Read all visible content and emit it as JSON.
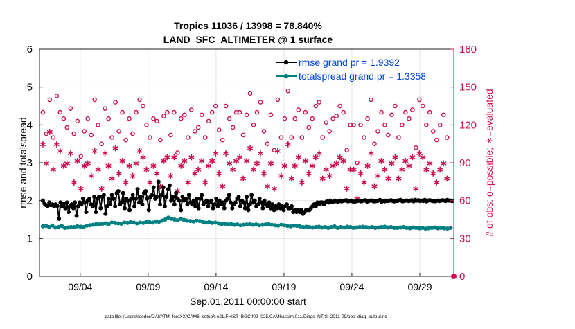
{
  "chart_data": {
    "type": "line",
    "title_line1": "Tropics 11036 / 13998 = 78.840%",
    "title_line2": "LAND_SFC_ALTIMETER @ 1 surface",
    "xlabel": "Sep.01,2011 00:00:00 start",
    "ylabel_left": "rmse and totalspread",
    "ylabel_right": "# of obs: o=possible; ∗=evaluated",
    "footer": "data file: /Users/raeder/DAI/ATM_forcXX/CAM6_setup/f.e21.FHIST_BGC.f09_025.CAM6assim.011/Diags_NTrS_2011-09/obs_diag_output.nc",
    "xlim": [
      0,
      30.5
    ],
    "ylim_left": [
      0,
      6
    ],
    "ylim_right": [
      0,
      180
    ],
    "left_ticks": [
      "0",
      "1",
      "2",
      "3",
      "4",
      "5",
      "6"
    ],
    "right_ticks": [
      "0",
      "30",
      "60",
      "90",
      "120",
      "150",
      "180"
    ],
    "x_ticks": [
      {
        "day": 3,
        "label": "09/04"
      },
      {
        "day": 8,
        "label": "09/09"
      },
      {
        "day": 13,
        "label": "09/14"
      },
      {
        "day": 18,
        "label": "09/19"
      },
      {
        "day": 23,
        "label": "09/24"
      },
      {
        "day": 28,
        "label": "09/29"
      }
    ],
    "legend": {
      "position": "top-right",
      "rmse": "rmse grand pr = 1.9392",
      "spread": "totalspread grand pr = 1.3358"
    },
    "colors": {
      "rmse": "#000000",
      "spread": "#008080",
      "obs": "#cc1155",
      "legend_text": "#0044dd",
      "grid": "#e4e4e4"
    },
    "series": [
      {
        "name": "rmse",
        "values": [
          2.0,
          1.92,
          1.88,
          1.86,
          1.95,
          1.88,
          1.9,
          1.85,
          1.9,
          1.86,
          1.52,
          1.95,
          1.85,
          1.92,
          1.8,
          1.95,
          1.7,
          1.85,
          1.9,
          1.8,
          1.95,
          1.6,
          1.85,
          1.95,
          1.9,
          2.05,
          1.95,
          1.7,
          2.0,
          2.05,
          1.9,
          1.85,
          2.1,
          1.7,
          2.05,
          2.1,
          1.8,
          2.1,
          2.15,
          1.65,
          1.85,
          2.05,
          1.9,
          2.15,
          2.05,
          1.85,
          2.2,
          2.25,
          1.9,
          1.95,
          2.2,
          1.8,
          2.05,
          2.0,
          1.75,
          2.05,
          2.15,
          1.85,
          2.05,
          2.3,
          1.95,
          2.1,
          1.9,
          2.2,
          2.25,
          2.05,
          1.75,
          2.1,
          2.15,
          2.35,
          2.05,
          2.1,
          2.5,
          1.9,
          2.15,
          2.35,
          1.85,
          2.1,
          2.3,
          2.4,
          2.0,
          2.1,
          1.9,
          2.2,
          2.05,
          2.0,
          1.75,
          2.1,
          2.0,
          2.05,
          1.9,
          2.15,
          1.95,
          1.9,
          2.0,
          1.85,
          2.05,
          1.8,
          2.05,
          2.15,
          1.9,
          1.95,
          2.0,
          1.85,
          1.95,
          2.0,
          1.8,
          1.9,
          2.05,
          1.85,
          2.0,
          1.9,
          1.95,
          1.8,
          2.0,
          2.05,
          2.15,
          1.95,
          1.8,
          1.9,
          1.95,
          2.05,
          2.1,
          1.85,
          2.0,
          1.95,
          1.8,
          2.1,
          1.75,
          1.9,
          2.15,
          1.95,
          2.0,
          1.85,
          1.9,
          2.05,
          1.95,
          1.8,
          2.0,
          1.9,
          1.85,
          1.95,
          1.8,
          1.9,
          1.75,
          1.85,
          1.8,
          1.9,
          1.8,
          1.85,
          1.75,
          1.85,
          1.9,
          1.8,
          1.8,
          1.85,
          1.7,
          1.75,
          1.7,
          1.75,
          1.7,
          1.75,
          1.65,
          1.7,
          1.75,
          1.75,
          1.75,
          1.8,
          1.85,
          1.9,
          1.85,
          1.95,
          1.9,
          1.95,
          1.95,
          1.9,
          1.95,
          1.98,
          1.95,
          2.0,
          1.96,
          1.97,
          2.0,
          1.98,
          1.97,
          2.0,
          1.98,
          1.99,
          2.0,
          2.01,
          1.98,
          1.99,
          2.0,
          1.98,
          1.97,
          1.98,
          1.99,
          2.0,
          1.98,
          1.99,
          2.0,
          2.01,
          1.97,
          1.99,
          2.0,
          2.0,
          1.98,
          1.98,
          1.99,
          2.0,
          2.02,
          1.97,
          1.99,
          1.98,
          2.0,
          1.99,
          2.0,
          2.01,
          1.99,
          1.98,
          2.0,
          1.99,
          2.01,
          2.02,
          1.98,
          1.99,
          2.0,
          2.0,
          1.99,
          2.0,
          2.01,
          1.98,
          2.02,
          2.0,
          2.01,
          1.99,
          2.0,
          1.99,
          2.02,
          1.98,
          2.0,
          2.01,
          2.0,
          1.99,
          1.98,
          1.99,
          2.0,
          1.99,
          2.0,
          2.01,
          2.0,
          1.99,
          2.02,
          2.0,
          2.0,
          1.99
        ],
        "note": "values sampled every 0.25 day"
      },
      {
        "name": "totalspread",
        "values": [
          1.32,
          1.33,
          1.3,
          1.34,
          1.29,
          1.3,
          1.33,
          1.28,
          1.29,
          1.3,
          1.3,
          1.32,
          1.31,
          1.3,
          1.34,
          1.35,
          1.36,
          1.38,
          1.37,
          1.39,
          1.4,
          1.38,
          1.42,
          1.41,
          1.4,
          1.39,
          1.42,
          1.41,
          1.43,
          1.42,
          1.4,
          1.42,
          1.41,
          1.44,
          1.43,
          1.42,
          1.45,
          1.44,
          1.47,
          1.5,
          1.55,
          1.52,
          1.5,
          1.48,
          1.52,
          1.49,
          1.47,
          1.46,
          1.45,
          1.47,
          1.46,
          1.44,
          1.42,
          1.43,
          1.41,
          1.42,
          1.4,
          1.38,
          1.39,
          1.37,
          1.38,
          1.36,
          1.37,
          1.35,
          1.36,
          1.37,
          1.38,
          1.36,
          1.37,
          1.35,
          1.36,
          1.37,
          1.38,
          1.36,
          1.35,
          1.34,
          1.36,
          1.35,
          1.33,
          1.32,
          1.34,
          1.33,
          1.32,
          1.3,
          1.31,
          1.3,
          1.29,
          1.3,
          1.31,
          1.29,
          1.3,
          1.28,
          1.3,
          1.32,
          1.28,
          1.3,
          1.29,
          1.31,
          1.3,
          1.28,
          1.29,
          1.3,
          1.31,
          1.3,
          1.29,
          1.3,
          1.28,
          1.29,
          1.3,
          1.31,
          1.29,
          1.3,
          1.28,
          1.28,
          1.29,
          1.3,
          1.28,
          1.27,
          1.29,
          1.28,
          1.27,
          1.28,
          1.26,
          1.27,
          1.28,
          1.29,
          1.27,
          1.28,
          1.27,
          1.26,
          1.28
        ]
      }
    ],
    "obs_possible": [
      130,
      113,
      140,
      110,
      143,
      130,
      125,
      118,
      133,
      113,
      123,
      95,
      115,
      125,
      112,
      140,
      120,
      105,
      133,
      125,
      110,
      138,
      115,
      130,
      108,
      125,
      113,
      130,
      140,
      135,
      120,
      110,
      125,
      123,
      108,
      127,
      130,
      112,
      130,
      98,
      125,
      128,
      110,
      132,
      115,
      118,
      128,
      110,
      123,
      130,
      135,
      116,
      108,
      135,
      125,
      118,
      130,
      130,
      112,
      128,
      145,
      120,
      130,
      138,
      115,
      105,
      128,
      100,
      140,
      110,
      125,
      147,
      110,
      125,
      132,
      110,
      130,
      118,
      125,
      135,
      138,
      110,
      122,
      115,
      125,
      127,
      135,
      130,
      100,
      120,
      120,
      90,
      120,
      110,
      125,
      140,
      105,
      115,
      130,
      120,
      112,
      128,
      135,
      110,
      120,
      130,
      125,
      132,
      102,
      140,
      135,
      120,
      130,
      115,
      108,
      120,
      128,
      110
    ],
    "obs_evaluated": [
      105,
      90,
      115,
      85,
      105,
      100,
      88,
      90,
      98,
      75,
      92,
      70,
      88,
      90,
      80,
      100,
      85,
      70,
      98,
      88,
      78,
      102,
      82,
      92,
      75,
      88,
      80,
      90,
      100,
      95,
      85,
      75,
      88,
      82,
      72,
      92,
      95,
      80,
      95,
      68,
      88,
      92,
      75,
      95,
      82,
      85,
      92,
      75,
      88,
      92,
      98,
      82,
      72,
      98,
      90,
      85,
      92,
      95,
      78,
      92,
      102,
      85,
      90,
      98,
      82,
      72,
      90,
      70,
      100,
      80,
      88,
      105,
      78,
      88,
      95,
      75,
      92,
      82,
      88,
      95,
      98,
      78,
      85,
      80,
      88,
      90,
      95,
      92,
      70,
      85,
      85,
      62,
      82,
      75,
      88,
      98,
      72,
      80,
      92,
      85,
      78,
      90,
      95,
      78,
      85,
      92,
      88,
      95,
      70,
      98,
      95,
      85,
      90,
      82,
      75,
      85,
      90,
      78
    ]
  }
}
